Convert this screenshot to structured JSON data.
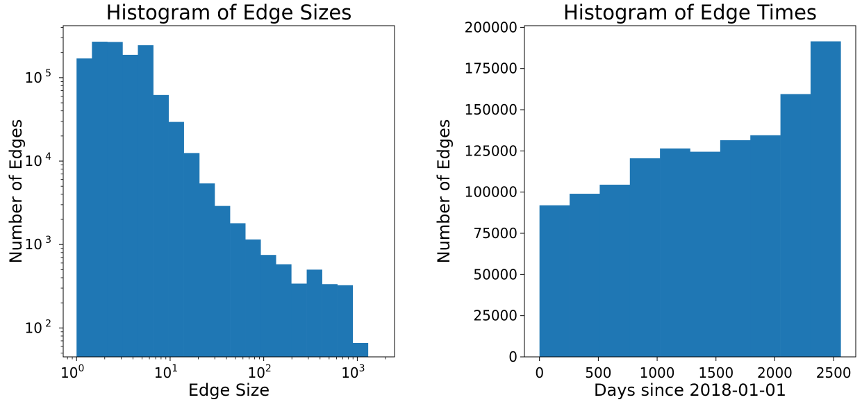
{
  "chart_data": [
    {
      "type": "bar",
      "title": "Histogram of Edge Sizes",
      "xlabel": "Edge Size",
      "ylabel": "Number of Edges",
      "xscale": "log",
      "yscale": "log",
      "xlim": [
        0.72,
        2500
      ],
      "ylim": [
        45,
        420000
      ],
      "color": "#1f77b4",
      "grid": false,
      "xticks": [
        {
          "value": 1,
          "base": "10",
          "exp": "0"
        },
        {
          "value": 10,
          "base": "10",
          "exp": "1"
        },
        {
          "value": 100,
          "base": "10",
          "exp": "2"
        },
        {
          "value": 1000,
          "base": "10",
          "exp": "3"
        }
      ],
      "yticks": [
        {
          "value": 100,
          "base": "10",
          "exp": "2"
        },
        {
          "value": 1000,
          "base": "10",
          "exp": "3"
        },
        {
          "value": 10000,
          "base": "10",
          "exp": "4"
        },
        {
          "value": 100000,
          "base": "10",
          "exp": "5"
        }
      ],
      "bins": [
        {
          "x0": 1.0,
          "x1": 1.46,
          "value": 170000
        },
        {
          "x0": 1.46,
          "x1": 2.13,
          "value": 270000
        },
        {
          "x0": 2.13,
          "x1": 3.1,
          "value": 268000
        },
        {
          "x0": 3.1,
          "x1": 4.52,
          "value": 188000
        },
        {
          "x0": 4.52,
          "x1": 6.6,
          "value": 245000
        },
        {
          "x0": 6.6,
          "x1": 9.62,
          "value": 62000
        },
        {
          "x0": 9.62,
          "x1": 14.0,
          "value": 29500
        },
        {
          "x0": 14.0,
          "x1": 20.5,
          "value": 12500
        },
        {
          "x0": 20.5,
          "x1": 29.9,
          "value": 5400
        },
        {
          "x0": 29.9,
          "x1": 43.6,
          "value": 2900
        },
        {
          "x0": 43.6,
          "x1": 63.6,
          "value": 1800
        },
        {
          "x0": 63.6,
          "x1": 92.7,
          "value": 1150
        },
        {
          "x0": 92.7,
          "x1": 135,
          "value": 750
        },
        {
          "x0": 135,
          "x1": 197,
          "value": 580
        },
        {
          "x0": 197,
          "x1": 288,
          "value": 340
        },
        {
          "x0": 288,
          "x1": 420,
          "value": 500
        },
        {
          "x0": 420,
          "x1": 612,
          "value": 335
        },
        {
          "x0": 612,
          "x1": 893,
          "value": 325
        },
        {
          "x0": 893,
          "x1": 1302,
          "value": 66
        },
        {
          "x0": 1302,
          "x1": 1800,
          "value": 0
        }
      ]
    },
    {
      "type": "bar",
      "title": "Histogram of Edge Times",
      "xlabel": "Days since 2018-01-01",
      "ylabel": "Number of Edges",
      "xlim": [
        -128,
        2688
      ],
      "ylim": [
        0,
        201000
      ],
      "color": "#1f77b4",
      "grid": false,
      "xticks": [
        "0",
        "500",
        "1000",
        "1500",
        "2000",
        "2500"
      ],
      "yticks": [
        "0",
        "25000",
        "50000",
        "75000",
        "100000",
        "125000",
        "150000",
        "175000",
        "200000"
      ],
      "bins": [
        {
          "x0": 0,
          "x1": 256,
          "value": 92000
        },
        {
          "x0": 256,
          "x1": 512,
          "value": 99000
        },
        {
          "x0": 512,
          "x1": 768,
          "value": 104500
        },
        {
          "x0": 768,
          "x1": 1024,
          "value": 120500
        },
        {
          "x0": 1024,
          "x1": 1280,
          "value": 126500
        },
        {
          "x0": 1280,
          "x1": 1536,
          "value": 124500
        },
        {
          "x0": 1536,
          "x1": 1792,
          "value": 131500
        },
        {
          "x0": 1792,
          "x1": 2048,
          "value": 134500
        },
        {
          "x0": 2048,
          "x1": 2304,
          "value": 159500
        },
        {
          "x0": 2304,
          "x1": 2560,
          "value": 191500
        }
      ]
    }
  ]
}
